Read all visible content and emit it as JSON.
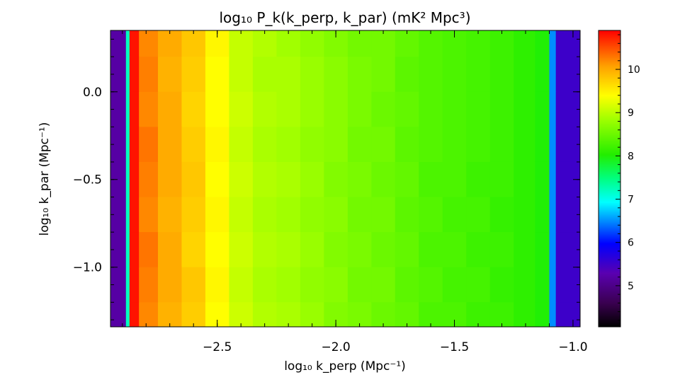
{
  "chart_data": {
    "type": "heatmap",
    "title": "log₁₀ P_k(k_perp, k_par) (mK² Mpc³)",
    "xlabel": "log₁₀ k_perp (Mpc⁻¹)",
    "ylabel": "log₁₀ k_par (Mpc⁻¹)",
    "xlim": [
      -2.95,
      -0.97
    ],
    "ylim": [
      -1.34,
      0.35
    ],
    "x_ticks": [
      -2.5,
      -2.0,
      -1.5,
      -1.0
    ],
    "x_tick_labels": [
      "−2.5",
      "−2.0",
      "−1.5",
      "−1.0"
    ],
    "y_ticks": [
      0.0,
      -0.5,
      -1.0
    ],
    "y_tick_labels": [
      "0.0",
      "−0.5",
      "−1.0"
    ],
    "colorbar": {
      "range": [
        4.05,
        10.9
      ],
      "ticks": [
        10,
        9,
        8,
        7,
        6,
        5
      ],
      "tick_labels": [
        "10",
        "9",
        "8",
        "7",
        "6",
        "5"
      ]
    },
    "x": [
      -2.89,
      -2.88,
      -2.86,
      -2.8,
      -2.7,
      -2.6,
      -2.5,
      -2.4,
      -2.3,
      -2.2,
      -2.1,
      -2.0,
      -1.9,
      -1.8,
      -1.7,
      -1.6,
      -1.5,
      -1.4,
      -1.3,
      -1.2,
      -1.12,
      -1.08,
      -1.065
    ],
    "y": [
      0.3,
      0.1,
      -0.1,
      -0.3,
      -0.5,
      -0.7,
      -0.9,
      -1.1,
      -1.3
    ],
    "z": [
      [
        5.2,
        7.2,
        10.8,
        10.2,
        10.0,
        9.8,
        9.45,
        9.05,
        8.95,
        8.85,
        8.75,
        8.65,
        8.55,
        8.55,
        8.45,
        8.35,
        8.3,
        8.25,
        8.2,
        8.1,
        8.0,
        6.5,
        5.5
      ],
      [
        5.2,
        7.2,
        10.8,
        10.25,
        9.95,
        9.75,
        9.4,
        9.05,
        8.9,
        8.9,
        8.8,
        8.7,
        8.6,
        8.55,
        8.4,
        8.35,
        8.3,
        8.25,
        8.2,
        8.1,
        8.0,
        6.5,
        5.5
      ],
      [
        5.2,
        7.2,
        10.8,
        10.2,
        10.0,
        9.7,
        9.4,
        9.1,
        8.95,
        8.9,
        8.8,
        8.7,
        8.6,
        8.5,
        8.45,
        8.35,
        8.3,
        8.25,
        8.2,
        8.1,
        8.0,
        6.5,
        5.5
      ],
      [
        5.2,
        7.2,
        10.8,
        10.3,
        10.0,
        9.75,
        9.45,
        9.05,
        8.9,
        8.85,
        8.75,
        8.7,
        8.55,
        8.55,
        8.4,
        8.35,
        8.3,
        8.25,
        8.2,
        8.1,
        8.0,
        6.5,
        5.5
      ],
      [
        5.2,
        7.2,
        10.8,
        10.25,
        10.0,
        9.8,
        9.4,
        9.1,
        8.95,
        8.9,
        8.8,
        8.65,
        8.6,
        8.5,
        8.45,
        8.3,
        8.3,
        8.2,
        8.2,
        8.1,
        8.0,
        6.5,
        5.5
      ],
      [
        5.2,
        7.2,
        10.8,
        10.2,
        9.95,
        9.75,
        9.45,
        9.05,
        8.9,
        8.85,
        8.75,
        8.7,
        8.55,
        8.55,
        8.4,
        8.35,
        8.25,
        8.25,
        8.15,
        8.1,
        8.0,
        6.5,
        5.5
      ],
      [
        5.2,
        7.2,
        10.8,
        10.3,
        10.0,
        9.7,
        9.4,
        9.1,
        8.95,
        8.9,
        8.8,
        8.65,
        8.6,
        8.5,
        8.45,
        8.3,
        8.3,
        8.2,
        8.2,
        8.1,
        8.0,
        6.5,
        5.5
      ],
      [
        5.2,
        7.2,
        10.8,
        10.25,
        10.0,
        9.8,
        9.45,
        9.05,
        8.9,
        8.85,
        8.75,
        8.7,
        8.55,
        8.55,
        8.4,
        8.35,
        8.25,
        8.25,
        8.15,
        8.1,
        8.0,
        6.5,
        5.5
      ],
      [
        5.2,
        7.2,
        10.8,
        10.2,
        9.95,
        9.75,
        9.4,
        9.1,
        8.95,
        8.9,
        8.8,
        8.65,
        8.6,
        8.5,
        8.45,
        8.3,
        8.3,
        8.2,
        8.2,
        8.1,
        8.0,
        6.5,
        5.5
      ]
    ]
  }
}
